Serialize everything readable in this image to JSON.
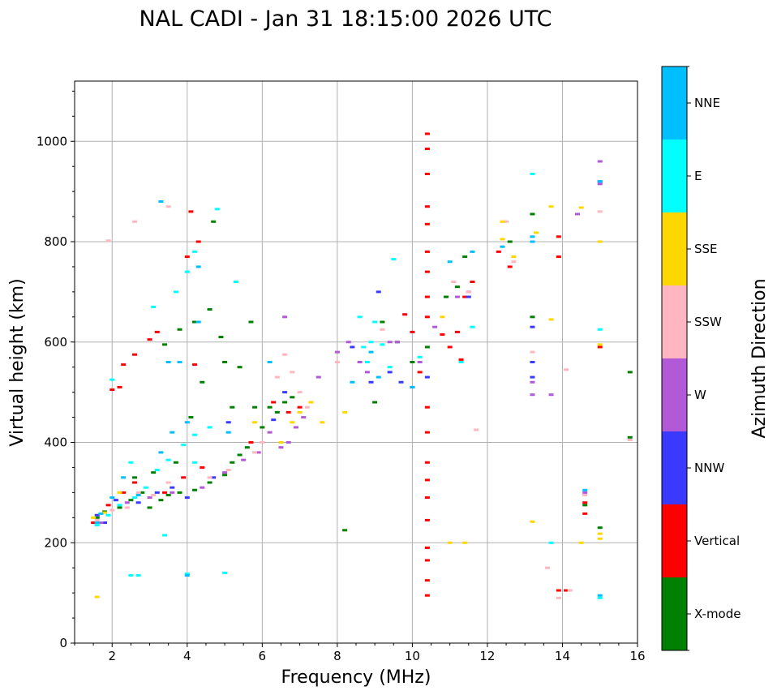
{
  "chart_data": {
    "type": "scatter",
    "title": "NAL CADI - Jan 31 18:15:00 2026 UTC",
    "xlabel": "Frequency (MHz)",
    "ylabel": "Virtual height (km)",
    "xlim": [
      1,
      16
    ],
    "ylim": [
      0,
      1120
    ],
    "xticks": [
      2,
      4,
      6,
      8,
      10,
      12,
      14,
      16
    ],
    "yticks": [
      0,
      200,
      400,
      600,
      800,
      1000
    ],
    "grid": true,
    "colorbar": {
      "label": "Azimuth Direction",
      "categories": [
        {
          "name": "X-mode",
          "color": "#008000"
        },
        {
          "name": "Vertical",
          "color": "#ff0000"
        },
        {
          "name": "NNW",
          "color": "#3a3aff"
        },
        {
          "name": "W",
          "color": "#b259d8"
        },
        {
          "name": "SSW",
          "color": "#ffb6c1"
        },
        {
          "name": "SSE",
          "color": "#ffd700"
        },
        {
          "name": "E",
          "color": "#00ffff"
        },
        {
          "name": "NNE",
          "color": "#00bfff"
        }
      ]
    },
    "series": [
      {
        "name": "X-mode",
        "points": [
          [
            1.6,
            250
          ],
          [
            1.8,
            262
          ],
          [
            2.2,
            270
          ],
          [
            2.5,
            285
          ],
          [
            2.8,
            300
          ],
          [
            3.0,
            270
          ],
          [
            3.3,
            285
          ],
          [
            3.5,
            295
          ],
          [
            3.8,
            300
          ],
          [
            4.2,
            305
          ],
          [
            4.6,
            320
          ],
          [
            5.0,
            335
          ],
          [
            5.2,
            360
          ],
          [
            5.4,
            375
          ],
          [
            5.6,
            390
          ],
          [
            5.8,
            470
          ],
          [
            6.0,
            430
          ],
          [
            6.2,
            470
          ],
          [
            6.4,
            460
          ],
          [
            6.6,
            480
          ],
          [
            6.8,
            490
          ],
          [
            3.4,
            595
          ],
          [
            3.8,
            625
          ],
          [
            4.2,
            640
          ],
          [
            4.6,
            665
          ],
          [
            4.9,
            610
          ],
          [
            5.0,
            560
          ],
          [
            4.4,
            520
          ],
          [
            5.2,
            470
          ],
          [
            5.4,
            550
          ],
          [
            4.1,
            450
          ],
          [
            3.7,
            360
          ],
          [
            8.2,
            225
          ],
          [
            9.2,
            640
          ],
          [
            9.6,
            600
          ],
          [
            10.0,
            560
          ],
          [
            10.4,
            590
          ],
          [
            10.9,
            690
          ],
          [
            11.2,
            710
          ],
          [
            11.4,
            770
          ],
          [
            12.6,
            800
          ],
          [
            13.2,
            650
          ],
          [
            13.2,
            855
          ],
          [
            14.6,
            275
          ],
          [
            15.0,
            230
          ],
          [
            15.8,
            540
          ],
          [
            15.8,
            410
          ],
          [
            2.6,
            330
          ],
          [
            3.1,
            340
          ],
          [
            4.7,
            840
          ],
          [
            5.7,
            640
          ],
          [
            9.0,
            480
          ]
        ]
      },
      {
        "name": "Vertical",
        "points": [
          [
            1.5,
            240
          ],
          [
            1.9,
            275
          ],
          [
            2.3,
            300
          ],
          [
            2.6,
            320
          ],
          [
            3.0,
            605
          ],
          [
            3.2,
            620
          ],
          [
            3.4,
            300
          ],
          [
            3.9,
            330
          ],
          [
            4.4,
            350
          ],
          [
            2.3,
            555
          ],
          [
            2.6,
            575
          ],
          [
            2.0,
            505
          ],
          [
            2.2,
            510
          ],
          [
            4.1,
            860
          ],
          [
            4.3,
            800
          ],
          [
            4.0,
            770
          ],
          [
            4.2,
            555
          ],
          [
            5.7,
            400
          ],
          [
            6.3,
            480
          ],
          [
            6.7,
            460
          ],
          [
            7.0,
            470
          ],
          [
            9.8,
            655
          ],
          [
            10.0,
            620
          ],
          [
            10.2,
            540
          ],
          [
            10.4,
            1015
          ],
          [
            10.4,
            985
          ],
          [
            10.4,
            935
          ],
          [
            10.4,
            870
          ],
          [
            10.4,
            835
          ],
          [
            10.4,
            780
          ],
          [
            10.4,
            740
          ],
          [
            10.4,
            690
          ],
          [
            10.4,
            650
          ],
          [
            10.4,
            470
          ],
          [
            10.4,
            420
          ],
          [
            10.4,
            360
          ],
          [
            10.4,
            325
          ],
          [
            10.4,
            290
          ],
          [
            10.4,
            245
          ],
          [
            10.4,
            190
          ],
          [
            10.4,
            165
          ],
          [
            10.4,
            125
          ],
          [
            10.4,
            95
          ],
          [
            10.8,
            615
          ],
          [
            11.0,
            590
          ],
          [
            11.3,
            565
          ],
          [
            11.4,
            690
          ],
          [
            11.6,
            720
          ],
          [
            12.3,
            780
          ],
          [
            12.6,
            750
          ],
          [
            13.9,
            810
          ],
          [
            13.9,
            770
          ],
          [
            13.9,
            105
          ],
          [
            14.1,
            105
          ],
          [
            14.6,
            280
          ],
          [
            14.6,
            258
          ],
          [
            15.0,
            590
          ],
          [
            11.2,
            620
          ]
        ]
      },
      {
        "name": "NNW",
        "points": [
          [
            1.6,
            255
          ],
          [
            1.8,
            240
          ],
          [
            2.1,
            285
          ],
          [
            2.7,
            280
          ],
          [
            3.2,
            300
          ],
          [
            3.6,
            310
          ],
          [
            4.0,
            290
          ],
          [
            4.7,
            330
          ],
          [
            5.1,
            440
          ],
          [
            6.3,
            445
          ],
          [
            6.6,
            500
          ],
          [
            8.4,
            590
          ],
          [
            8.9,
            520
          ],
          [
            9.1,
            700
          ],
          [
            9.4,
            540
          ],
          [
            9.7,
            520
          ],
          [
            10.0,
            510
          ],
          [
            10.4,
            530
          ],
          [
            11.5,
            690
          ],
          [
            13.2,
            630
          ],
          [
            13.2,
            560
          ],
          [
            13.2,
            530
          ],
          [
            15.0,
            920
          ]
        ]
      },
      {
        "name": "W",
        "points": [
          [
            1.7,
            240
          ],
          [
            2.4,
            280
          ],
          [
            3.0,
            290
          ],
          [
            3.6,
            300
          ],
          [
            4.4,
            310
          ],
          [
            5.0,
            340
          ],
          [
            5.5,
            365
          ],
          [
            5.9,
            380
          ],
          [
            6.2,
            420
          ],
          [
            6.5,
            390
          ],
          [
            6.7,
            400
          ],
          [
            6.9,
            430
          ],
          [
            7.1,
            450
          ],
          [
            6.6,
            650
          ],
          [
            7.5,
            530
          ],
          [
            8.0,
            580
          ],
          [
            8.3,
            600
          ],
          [
            8.6,
            560
          ],
          [
            8.8,
            540
          ],
          [
            9.4,
            600
          ],
          [
            9.6,
            600
          ],
          [
            10.2,
            560
          ],
          [
            10.6,
            630
          ],
          [
            11.2,
            690
          ],
          [
            11.5,
            700
          ],
          [
            13.2,
            520
          ],
          [
            13.2,
            495
          ],
          [
            13.7,
            495
          ],
          [
            14.4,
            855
          ],
          [
            14.6,
            300
          ],
          [
            15.0,
            960
          ],
          [
            15.0,
            915
          ]
        ]
      },
      {
        "name": "SSW",
        "points": [
          [
            1.6,
            245
          ],
          [
            2.0,
            265
          ],
          [
            2.4,
            270
          ],
          [
            2.7,
            300
          ],
          [
            3.1,
            295
          ],
          [
            3.5,
            320
          ],
          [
            4.6,
            330
          ],
          [
            5.1,
            345
          ],
          [
            5.8,
            380
          ],
          [
            6.0,
            400
          ],
          [
            6.4,
            530
          ],
          [
            6.6,
            575
          ],
          [
            6.8,
            540
          ],
          [
            7.0,
            500
          ],
          [
            7.2,
            470
          ],
          [
            2.6,
            840
          ],
          [
            3.5,
            870
          ],
          [
            8.0,
            560
          ],
          [
            9.2,
            625
          ],
          [
            11.1,
            720
          ],
          [
            11.5,
            700
          ],
          [
            11.7,
            425
          ],
          [
            12.5,
            840
          ],
          [
            12.7,
            760
          ],
          [
            13.2,
            580
          ],
          [
            13.6,
            150
          ],
          [
            13.9,
            90
          ],
          [
            14.2,
            105
          ],
          [
            14.1,
            545
          ],
          [
            14.6,
            295
          ],
          [
            15.0,
            860
          ],
          [
            15.8,
            405
          ],
          [
            1.9,
            802
          ]
        ]
      },
      {
        "name": "SSE",
        "points": [
          [
            1.5,
            250
          ],
          [
            1.8,
            260
          ],
          [
            2.2,
            300
          ],
          [
            6.5,
            400
          ],
          [
            6.8,
            440
          ],
          [
            7.0,
            460
          ],
          [
            7.3,
            480
          ],
          [
            7.6,
            440
          ],
          [
            8.2,
            460
          ],
          [
            10.8,
            650
          ],
          [
            11.4,
            200
          ],
          [
            11.0,
            200
          ],
          [
            12.4,
            840
          ],
          [
            12.4,
            805
          ],
          [
            12.7,
            770
          ],
          [
            13.3,
            818
          ],
          [
            13.2,
            242
          ],
          [
            13.7,
            645
          ],
          [
            13.7,
            870
          ],
          [
            14.5,
            868
          ],
          [
            14.5,
            200
          ],
          [
            15.0,
            800
          ],
          [
            15.0,
            595
          ],
          [
            15.0,
            218
          ],
          [
            15.0,
            208
          ],
          [
            1.6,
            92
          ],
          [
            5.8,
            440
          ]
        ]
      },
      {
        "name": "E",
        "points": [
          [
            1.6,
            235
          ],
          [
            1.9,
            255
          ],
          [
            2.2,
            275
          ],
          [
            2.6,
            290
          ],
          [
            2.9,
            310
          ],
          [
            3.2,
            345
          ],
          [
            3.5,
            365
          ],
          [
            3.9,
            395
          ],
          [
            4.2,
            415
          ],
          [
            4.6,
            430
          ],
          [
            3.1,
            670
          ],
          [
            3.7,
            700
          ],
          [
            4.0,
            740
          ],
          [
            4.2,
            780
          ],
          [
            4.8,
            865
          ],
          [
            5.3,
            720
          ],
          [
            4.2,
            360
          ],
          [
            2.5,
            360
          ],
          [
            3.4,
            215
          ],
          [
            8.6,
            650
          ],
          [
            9.0,
            640
          ],
          [
            8.9,
            600
          ],
          [
            9.2,
            595
          ],
          [
            9.4,
            550
          ],
          [
            8.8,
            560
          ],
          [
            8.7,
            590
          ],
          [
            9.5,
            765
          ],
          [
            10.2,
            570
          ],
          [
            11.3,
            560
          ],
          [
            11.6,
            630
          ],
          [
            13.2,
            935
          ],
          [
            13.7,
            200
          ],
          [
            15.0,
            625
          ],
          [
            15.0,
            90
          ],
          [
            2.5,
            135
          ],
          [
            2.7,
            135
          ],
          [
            4.0,
            138
          ],
          [
            5.0,
            140
          ],
          [
            2.0,
            525
          ]
        ]
      },
      {
        "name": "NNE",
        "points": [
          [
            1.6,
            240
          ],
          [
            1.7,
            258
          ],
          [
            2.0,
            290
          ],
          [
            2.3,
            330
          ],
          [
            2.7,
            295
          ],
          [
            3.3,
            380
          ],
          [
            3.6,
            420
          ],
          [
            4.0,
            440
          ],
          [
            3.5,
            560
          ],
          [
            3.8,
            560
          ],
          [
            4.3,
            750
          ],
          [
            4.3,
            640
          ],
          [
            5.1,
            420
          ],
          [
            8.4,
            520
          ],
          [
            8.9,
            580
          ],
          [
            9.1,
            530
          ],
          [
            10.0,
            510
          ],
          [
            11.0,
            760
          ],
          [
            11.6,
            780
          ],
          [
            12.4,
            790
          ],
          [
            13.2,
            810
          ],
          [
            13.2,
            800
          ],
          [
            14.6,
            305
          ],
          [
            15.0,
            920
          ],
          [
            15.0,
            95
          ],
          [
            4.0,
            135
          ],
          [
            3.3,
            880
          ],
          [
            6.2,
            560
          ]
        ]
      }
    ]
  }
}
